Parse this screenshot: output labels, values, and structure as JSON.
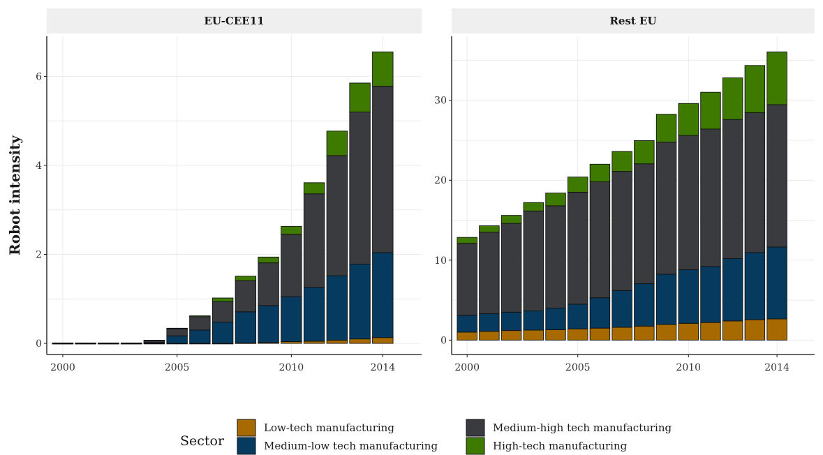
{
  "chart_data": {
    "type": "bar",
    "stacked": true,
    "ylabel": "Robot intensity",
    "xlabel": "",
    "x": [
      2000,
      2001,
      2002,
      2003,
      2004,
      2005,
      2006,
      2007,
      2008,
      2009,
      2010,
      2011,
      2012,
      2013,
      2014
    ],
    "x_ticks": [
      2000,
      2005,
      2010,
      2014
    ],
    "grid": true,
    "legend": {
      "title": "Sector",
      "position": "bottom",
      "entries": [
        {
          "name": "Low-tech manufacturing",
          "color": "#a66a00"
        },
        {
          "name": "Medium-high tech manufacturing",
          "color": "#3a3b3f"
        },
        {
          "name": "Medium-low tech manufacturing",
          "color": "#063a5e"
        },
        {
          "name": "High-tech manufacturing",
          "color": "#3f7a00"
        }
      ]
    },
    "panels": [
      {
        "strip": "EU-CEE11",
        "ylim": [
          -0.25,
          6.9
        ],
        "y_ticks": [
          0,
          2,
          4,
          6
        ],
        "series": [
          {
            "name": "Low-tech manufacturing",
            "color": "#a66a00",
            "values": [
              0.0,
              0.0,
              0.0,
              0.0,
              0.0,
              0.0,
              0.0,
              0.0,
              0.01,
              0.02,
              0.04,
              0.05,
              0.07,
              0.1,
              0.13
            ]
          },
          {
            "name": "Medium-low tech manufacturing",
            "color": "#063a5e",
            "values": [
              0.0,
              0.0,
              0.0,
              0.0,
              0.02,
              0.17,
              0.3,
              0.48,
              0.7,
              0.83,
              1.01,
              1.21,
              1.45,
              1.68,
              1.91
            ]
          },
          {
            "name": "Medium-high tech manufacturing",
            "color": "#3a3b3f",
            "values": [
              0.01,
              0.01,
              0.01,
              0.01,
              0.05,
              0.17,
              0.3,
              0.46,
              0.7,
              0.96,
              1.4,
              2.1,
              2.7,
              3.42,
              3.74
            ]
          },
          {
            "name": "High-tech manufacturing",
            "color": "#3f7a00",
            "values": [
              0.0,
              0.0,
              0.0,
              0.0,
              0.0,
              0.0,
              0.02,
              0.08,
              0.1,
              0.13,
              0.18,
              0.25,
              0.55,
              0.65,
              0.77
            ]
          }
        ]
      },
      {
        "strip": "Rest EU",
        "ylim": [
          -1.8,
          38
        ],
        "y_ticks": [
          0,
          10,
          20,
          30
        ],
        "series": [
          {
            "name": "Low-tech manufacturing",
            "color": "#a66a00",
            "values": [
              1.0,
              1.1,
              1.2,
              1.25,
              1.3,
              1.4,
              1.5,
              1.6,
              1.75,
              1.95,
              2.1,
              2.2,
              2.4,
              2.55,
              2.65
            ]
          },
          {
            "name": "Medium-low tech manufacturing",
            "color": "#063a5e",
            "values": [
              2.1,
              2.2,
              2.3,
              2.4,
              2.7,
              3.1,
              3.8,
              4.6,
              5.3,
              6.3,
              6.7,
              7.0,
              7.8,
              8.4,
              9.0
            ]
          },
          {
            "name": "Medium-high tech manufacturing",
            "color": "#3a3b3f",
            "values": [
              9.0,
              10.2,
              11.1,
              12.5,
              12.8,
              14.0,
              14.5,
              14.9,
              15.0,
              16.5,
              16.8,
              17.2,
              17.4,
              17.5,
              17.8
            ]
          },
          {
            "name": "High-tech manufacturing",
            "color": "#3f7a00",
            "values": [
              0.75,
              0.8,
              1.0,
              1.05,
              1.6,
              1.9,
              2.2,
              2.5,
              2.9,
              3.5,
              4.0,
              4.6,
              5.2,
              5.9,
              6.6
            ]
          }
        ]
      }
    ]
  }
}
